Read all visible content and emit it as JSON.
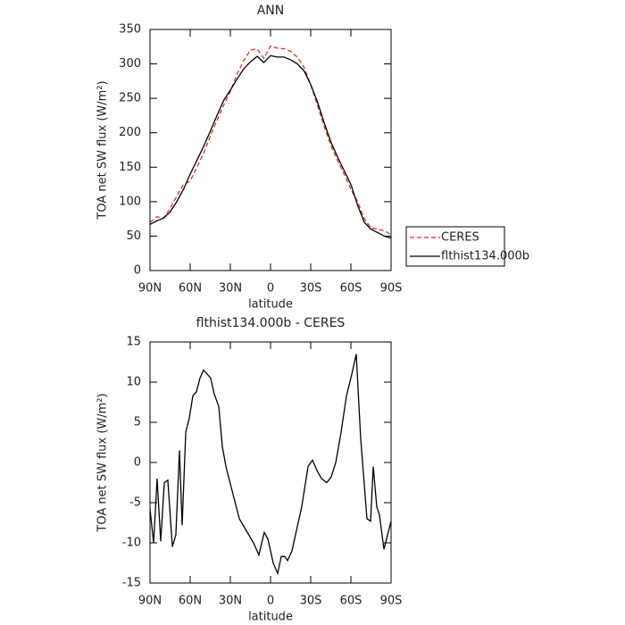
{
  "chart_data": [
    {
      "type": "line",
      "title": "ANN",
      "xlabel": "latitude",
      "ylabel": "TOA net SW flux (W/m²)",
      "x": [
        90,
        85,
        80,
        75,
        70,
        65,
        60,
        55,
        50,
        45,
        40,
        35,
        30,
        25,
        20,
        15,
        10,
        5,
        0,
        -5,
        -10,
        -15,
        -20,
        -25,
        -30,
        -35,
        -40,
        -45,
        -50,
        -55,
        -60,
        -65,
        -70,
        -75,
        -80,
        -85,
        -90
      ],
      "series": [
        {
          "name": "CERES",
          "color": "#e8282b",
          "line_style": "dashed",
          "values": [
            70,
            78,
            76,
            90,
            108,
            125,
            130,
            150,
            170,
            195,
            218,
            240,
            260,
            285,
            305,
            320,
            322,
            308,
            326,
            323,
            322,
            318,
            310,
            295,
            270,
            240,
            210,
            182,
            160,
            140,
            118,
            100,
            75,
            62,
            60,
            58,
            52
          ]
        },
        {
          "name": "flthist134.000b",
          "color": "#000000",
          "line_style": "solid",
          "values": [
            67,
            72,
            76,
            85,
            100,
            118,
            140,
            160,
            180,
            202,
            225,
            247,
            262,
            278,
            293,
            303,
            311,
            302,
            312,
            310,
            310,
            306,
            300,
            290,
            270,
            245,
            215,
            187,
            165,
            145,
            125,
            95,
            70,
            60,
            55,
            50,
            47
          ]
        }
      ],
      "xlim": [
        90,
        -90
      ],
      "xticks": [
        {
          "value": 90,
          "label": "90N"
        },
        {
          "value": 60,
          "label": "60N"
        },
        {
          "value": 30,
          "label": "30N"
        },
        0,
        {
          "value": -30,
          "label": "30S"
        },
        {
          "value": -60,
          "label": "60S"
        },
        {
          "value": -90,
          "label": "90S"
        }
      ],
      "ylim": [
        0,
        350
      ],
      "yticks": [
        0,
        50,
        100,
        150,
        200,
        250,
        300,
        350
      ],
      "legend": "right"
    },
    {
      "type": "line",
      "title": "flthist134.000b - CERES",
      "xlabel": "latitude",
      "ylabel": "TOA net SW flux (W/m²)",
      "x": [
        90,
        87.3,
        84.7,
        82,
        79.3,
        76.7,
        73.3,
        70.7,
        68,
        66,
        63.3,
        60.7,
        58,
        55.3,
        52.7,
        50,
        47.3,
        44.7,
        42,
        38.7,
        36,
        33.3,
        28.7,
        23.3,
        18,
        12.7,
        8.7,
        4.7,
        2,
        -2,
        -5.3,
        -8,
        -10.7,
        -12.7,
        -16,
        -19.3,
        -23.3,
        -28,
        -31.3,
        -34.7,
        -38,
        -42,
        -45.3,
        -48.7,
        -52.7,
        -56.7,
        -60.7,
        -64,
        -67.3,
        -72,
        -74.7,
        -76.7,
        -79.3,
        -81.3,
        -84.7,
        -90
      ],
      "series": [
        {
          "name": "flthist134.000b - CERES",
          "color": "#000000",
          "line_style": "solid",
          "values": [
            -5.8,
            -10,
            -2,
            -9.8,
            -2.5,
            -2.2,
            -10.5,
            -9,
            1.5,
            -7.8,
            3.8,
            5.5,
            8.3,
            8.8,
            10.5,
            11.5,
            11,
            10.5,
            8.5,
            7,
            2,
            -0.5,
            -3.5,
            -7,
            -8.5,
            -10,
            -11.5,
            -8.7,
            -9.5,
            -12.5,
            -13.8,
            -11.7,
            -11.7,
            -12.2,
            -11,
            -8.5,
            -5.5,
            -0.5,
            0.3,
            -1,
            -2,
            -2.5,
            -1.8,
            0,
            3.8,
            8.3,
            11,
            13.5,
            3,
            -7,
            -7.3,
            -0.5,
            -5.5,
            -6.5,
            -10.8,
            -7.3
          ]
        }
      ],
      "xlim": [
        90,
        -90
      ],
      "xticks": [
        {
          "value": 90,
          "label": "90N"
        },
        {
          "value": 60,
          "label": "60N"
        },
        {
          "value": 30,
          "label": "30N"
        },
        0,
        {
          "value": -30,
          "label": "30S"
        },
        {
          "value": -60,
          "label": "60S"
        },
        {
          "value": -90,
          "label": "90S"
        }
      ],
      "ylim": [
        -15,
        15
      ],
      "yticks": [
        -15,
        -10,
        -5,
        0,
        5,
        10,
        15
      ]
    }
  ]
}
